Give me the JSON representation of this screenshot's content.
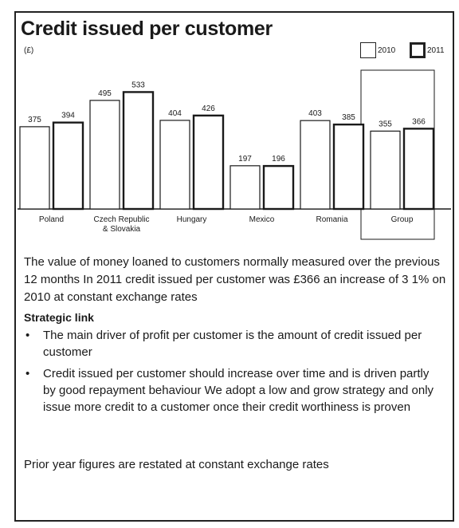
{
  "title": "Credit issued per customer",
  "unit_label": "(£)",
  "legend": [
    {
      "label": "2010",
      "icon": "outline-box-thin"
    },
    {
      "label": "2011",
      "icon": "outline-box-thick"
    }
  ],
  "chart_data": {
    "type": "bar",
    "categories": [
      "Poland",
      "Czech Republic\n& Slovakia",
      "Hungary",
      "Mexico",
      "Romania",
      "Group"
    ],
    "series": [
      {
        "name": "2010",
        "values": [
          375,
          495,
          404,
          197,
          403,
          355
        ]
      },
      {
        "name": "2011",
        "values": [
          394,
          533,
          426,
          196,
          385,
          366
        ]
      }
    ],
    "highlight_category": "Group",
    "legend_position": "top-right",
    "grid": false,
    "ylim": [
      0,
      600
    ]
  },
  "description": "The value of money loaned to customers normally measured over the previous 12 months In 2011 credit issued per customer was £366 an increase of 3 1% on 2010 at constant exchange rates",
  "strategic_link": {
    "heading": "Strategic link",
    "bullets": [
      "The main driver of profit per customer is the amount of credit issued per customer",
      "Credit issued per customer should increase over time and is driven partly by good repayment behaviour We adopt a low and grow strategy and only issue more credit to a customer once their credit worthiness is proven"
    ]
  },
  "footnote": "Prior year figures are restated at constant exchange rates",
  "colors": {
    "bar_fill": "#ffffff",
    "bar_stroke": "#1a1a1a",
    "text": "#1a1a1a"
  }
}
